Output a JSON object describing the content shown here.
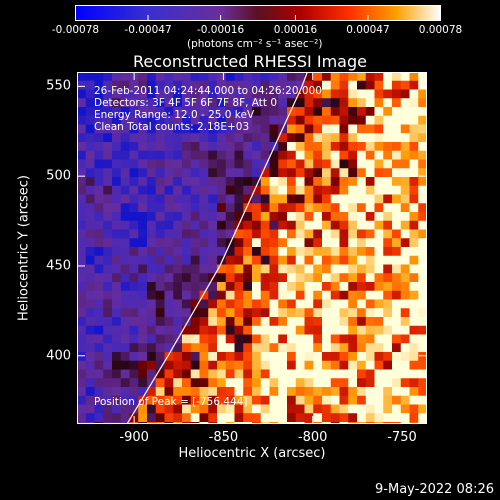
{
  "chart_data": {
    "type": "heatmap",
    "title": "Reconstructed RHESSI Image",
    "xlabel": "Heliocentric X (arcsec)",
    "ylabel": "Heliocentric Y (arcsec)",
    "xlim": [
      -932,
      -736
    ],
    "ylim": [
      362,
      558
    ],
    "x_ticks": [
      -900,
      -850,
      -800,
      -750
    ],
    "x_tick_labels": [
      "-900",
      "-850",
      "-800",
      "-750"
    ],
    "y_ticks": [
      400,
      450,
      500,
      550
    ],
    "y_tick_labels": [
      "400",
      "450",
      "500",
      "550"
    ],
    "colorbar": {
      "range": [
        -0.00078,
        0.00078
      ],
      "ticks": [
        -0.00078,
        -0.00047,
        -0.00016,
        0.00016,
        0.00047,
        0.00078
      ],
      "tick_labels": [
        "-0.00078",
        "-0.00047",
        "-0.00016",
        "0.00016",
        "0.00047",
        "0.00078"
      ],
      "unit_label": "(photons cm⁻² s⁻¹ asec⁻²)"
    },
    "info_lines": [
      "26-Feb-2011 04:24:44.000 to 04:26:20.000",
      "Detectors: 3F 4F 5F 6F 7F 8F, Att 0",
      "Energy Range: 12.0 - 25.0 keV",
      "Clean    Total counts: 2.18E+03"
    ],
    "peak_label": "Position of Peak = [-756,444]",
    "peak_position": [
      -756,
      444
    ],
    "limb_points": [
      [
        -904,
        362
      ],
      [
        -881,
        400
      ],
      [
        -852,
        450
      ],
      [
        -829,
        500
      ],
      [
        -806,
        550
      ],
      [
        -803,
        558
      ]
    ],
    "grid": false
  },
  "footer": {
    "timestamp": "9-May-2022 08:26"
  }
}
